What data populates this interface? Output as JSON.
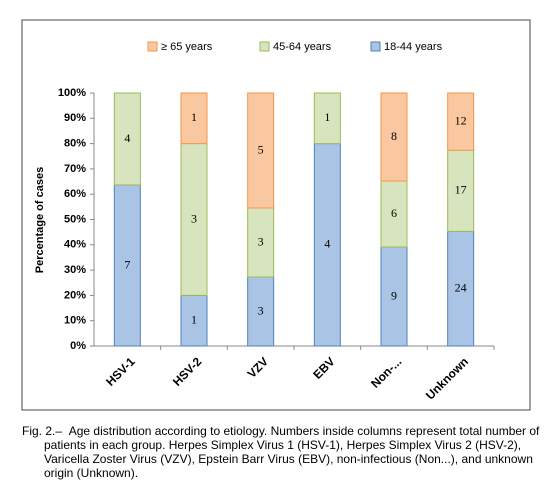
{
  "chart_data": {
    "type": "bar",
    "stacking": "percent",
    "ylabel": "Percentage of cases",
    "categories": [
      "HSV-1",
      "HSV-2",
      "VZV",
      "EBV",
      "Non-...",
      "Unknown"
    ],
    "series": [
      {
        "name": "≥ 65 years",
        "color": "#fac8a0",
        "values": [
          null,
          1,
          5,
          null,
          8,
          12
        ]
      },
      {
        "name": "45-64 years",
        "color": "#d7e4bd",
        "values": [
          4,
          3,
          3,
          1,
          6,
          17
        ]
      },
      {
        "name": "18-44 years",
        "color": "#a9c4e4",
        "values": [
          7,
          1,
          3,
          4,
          9,
          24
        ]
      }
    ],
    "ylim": [
      0,
      100
    ],
    "yticks": [
      {
        "value": 0,
        "label": "0%"
      },
      {
        "value": 10,
        "label": "10%"
      },
      {
        "value": 20,
        "label": "20%"
      },
      {
        "value": 30,
        "label": "30%"
      },
      {
        "value": 40,
        "label": "40%"
      },
      {
        "value": 50,
        "label": "50%"
      },
      {
        "value": 60,
        "label": "60%"
      },
      {
        "value": 70,
        "label": "70%"
      },
      {
        "value": 80,
        "label": "80%"
      },
      {
        "value": 90,
        "label": "90%"
      },
      {
        "value": 100,
        "label": "100%"
      }
    ],
    "grid": false
  },
  "caption": {
    "label": "Fig. 2.–",
    "text": "Age distribution according to etiology. Numbers inside columns represent total number of patients in each group. Herpes Simplex Virus 1 (HSV-1), Herpes Simplex Virus 2 (HSV-2), Varicella Zoster Virus (VZV), Epstein Barr Virus (EBV), non-infectious (Non...), and unknown origin (Unknown)."
  }
}
